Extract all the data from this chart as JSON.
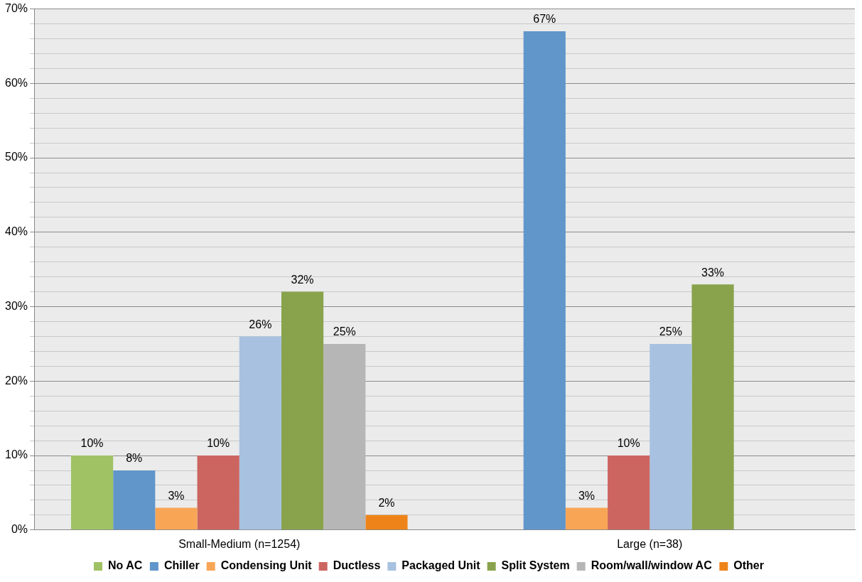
{
  "chart_data": {
    "type": "bar",
    "categories": [
      "Small-Medium (n=1254)",
      "Large (n=38)"
    ],
    "series": [
      {
        "name": "No AC",
        "color": "#a0c265",
        "values": [
          10,
          null
        ],
        "value_labels": [
          "10%",
          null
        ]
      },
      {
        "name": "Chiller",
        "color": "#6096ca",
        "values": [
          8,
          67
        ],
        "value_labels": [
          "8%",
          "67%"
        ]
      },
      {
        "name": "Condensing Unit",
        "color": "#f8a656",
        "values": [
          3,
          3
        ],
        "value_labels": [
          "3%",
          "3%"
        ]
      },
      {
        "name": "Ductless",
        "color": "#cc6560",
        "values": [
          10,
          10
        ],
        "value_labels": [
          "10%",
          "10%"
        ]
      },
      {
        "name": "Packaged Unit",
        "color": "#a8c1e0",
        "values": [
          26,
          25
        ],
        "value_labels": [
          "26%",
          "25%"
        ]
      },
      {
        "name": "Split System",
        "color": "#89a34c",
        "values": [
          32,
          33
        ],
        "value_labels": [
          "32%",
          "33%"
        ]
      },
      {
        "name": "Room/wall/window AC",
        "color": "#b6b6b6",
        "values": [
          25,
          null
        ],
        "value_labels": [
          "25%",
          null
        ]
      },
      {
        "name": "Other",
        "color": "#ee8419",
        "values": [
          2,
          null
        ],
        "value_labels": [
          "2%",
          null
        ]
      }
    ],
    "ylim": [
      0,
      70
    ],
    "yticks": [
      {
        "value": 0,
        "label": "0%"
      },
      {
        "value": 2,
        "label": null
      },
      {
        "value": 4,
        "label": null
      },
      {
        "value": 6,
        "label": null
      },
      {
        "value": 8,
        "label": null
      },
      {
        "value": 10,
        "label": "10%"
      },
      {
        "value": 12,
        "label": null
      },
      {
        "value": 14,
        "label": null
      },
      {
        "value": 16,
        "label": null
      },
      {
        "value": 18,
        "label": null
      },
      {
        "value": 20,
        "label": "20%"
      },
      {
        "value": 22,
        "label": null
      },
      {
        "value": 24,
        "label": null
      },
      {
        "value": 26,
        "label": null
      },
      {
        "value": 28,
        "label": null
      },
      {
        "value": 30,
        "label": "30%"
      },
      {
        "value": 32,
        "label": null
      },
      {
        "value": 34,
        "label": null
      },
      {
        "value": 36,
        "label": null
      },
      {
        "value": 38,
        "label": null
      },
      {
        "value": 40,
        "label": "40%"
      },
      {
        "value": 42,
        "label": null
      },
      {
        "value": 44,
        "label": null
      },
      {
        "value": 46,
        "label": null
      },
      {
        "value": 48,
        "label": null
      },
      {
        "value": 50,
        "label": "50%"
      },
      {
        "value": 52,
        "label": null
      },
      {
        "value": 54,
        "label": null
      },
      {
        "value": 56,
        "label": null
      },
      {
        "value": 58,
        "label": null
      },
      {
        "value": 60,
        "label": "60%"
      },
      {
        "value": 62,
        "label": null
      },
      {
        "value": 64,
        "label": null
      },
      {
        "value": 66,
        "label": null
      },
      {
        "value": 68,
        "label": null
      },
      {
        "value": 70,
        "label": "70%"
      }
    ],
    "grid": "y",
    "legend": "bottom"
  }
}
